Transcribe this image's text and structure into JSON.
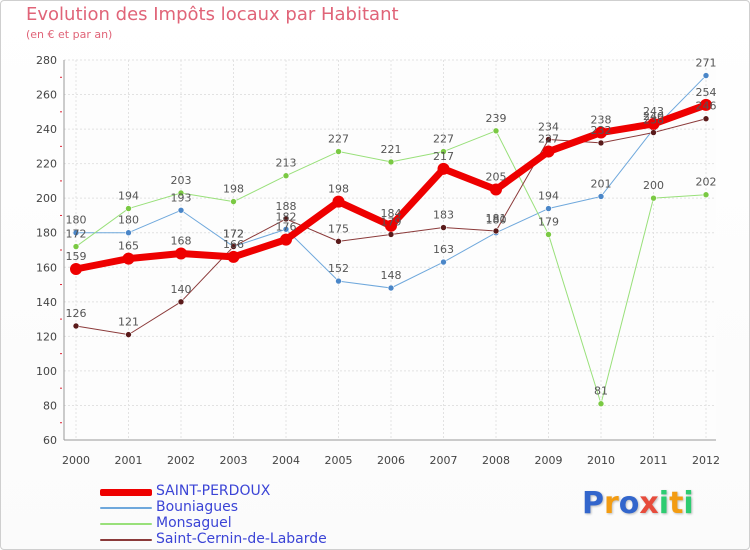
{
  "title": "Evolution des Impôts locaux par Habitant",
  "subtitle": "(en € et par an)",
  "logo": {
    "p": "P",
    "r": "r",
    "o": "o",
    "x": "x",
    "i": "i",
    "t": "t",
    "i2": "i"
  },
  "colors": {
    "logo": [
      "#3366cc",
      "#f39c12",
      "#3366cc",
      "#e74c3c",
      "#2ecc71",
      "#f39c12",
      "#2ecc71"
    ]
  },
  "chart_data": {
    "type": "line",
    "title": "Evolution des Impôts locaux par Habitant",
    "ylabel": "(en € et par an)",
    "x": [
      "2000",
      "2001",
      "2002",
      "2003",
      "2004",
      "2005",
      "2006",
      "2007",
      "2008",
      "2009",
      "2010",
      "2011",
      "2012"
    ],
    "ylim": [
      60,
      280
    ],
    "yticks": [
      60,
      80,
      100,
      120,
      140,
      160,
      180,
      200,
      220,
      240,
      260,
      280
    ],
    "grid": true,
    "legend_position": "bottom-left",
    "series": [
      {
        "name": "Bouniagues",
        "color": "#6fa8dc",
        "marker": "#4a86c8",
        "width": 1,
        "values": [
          180,
          180,
          193,
          172,
          182,
          152,
          148,
          163,
          180,
          194,
          201,
          240,
          271
        ],
        "labels": [
          "180",
          "180",
          "193",
          "172",
          "182",
          "152",
          "148",
          "163",
          "180",
          "194",
          "201",
          "240",
          "271"
        ]
      },
      {
        "name": "Monsaguel",
        "color": "#99e07a",
        "marker": "#7ac943",
        "width": 1,
        "values": [
          172,
          194,
          203,
          198,
          213,
          227,
          221,
          227,
          239,
          179,
          81,
          200,
          202
        ],
        "labels": [
          "172",
          "194",
          "203",
          "198",
          "213",
          "227",
          "221",
          "227",
          "239",
          "179",
          "81",
          "200",
          "202"
        ]
      },
      {
        "name": "Saint-Cernin-de-Labarde",
        "color": "#8b3a3a",
        "marker": "#5a1a1a",
        "width": 1,
        "values": [
          126,
          121,
          140,
          172,
          188,
          175,
          179,
          183,
          181,
          234,
          232,
          238,
          246
        ],
        "labels": [
          "126",
          "121",
          "140",
          "172",
          "188",
          "175",
          "179",
          "183",
          "181",
          "234",
          "232",
          "238",
          "246"
        ]
      },
      {
        "name": "SAINT-PERDOUX",
        "color": "#ee0000",
        "marker": "#ee0000",
        "width": 7,
        "values": [
          159,
          165,
          168,
          166,
          176,
          198,
          184,
          217,
          205,
          227,
          238,
          243,
          254
        ],
        "labels": [
          "159",
          "165",
          "168",
          "166",
          "176",
          "198",
          "184",
          "217",
          "205",
          "227",
          "238",
          "243",
          "254"
        ]
      }
    ],
    "legend_order": [
      "SAINT-PERDOUX",
      "Bouniagues",
      "Monsaguel",
      "Saint-Cernin-de-Labarde"
    ]
  }
}
